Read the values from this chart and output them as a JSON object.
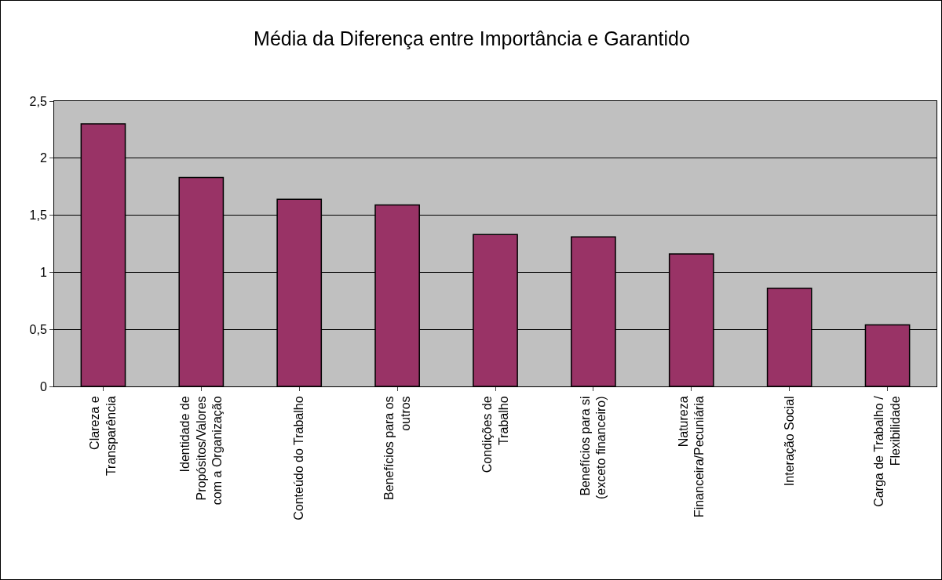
{
  "chart_data": {
    "type": "bar",
    "title": "Média da Diferença entre Importância e Garantido",
    "categories": [
      "Clareza e\nTransparência",
      "Identidade de\nPropósitos/Valores\ncom a Organização",
      "Conteúdo do Trabalho",
      "Benefícios para os\noutros",
      "Condições de\nTrabalho",
      "Benefícios para si\n(exceto financeiro)",
      "Natureza\nFinanceira/Pecuniária",
      "Interação Social",
      "Carga de Trabalho /\nFlexibilidade"
    ],
    "values": [
      2.3,
      1.83,
      1.64,
      1.59,
      1.33,
      1.31,
      1.16,
      0.86,
      0.54
    ],
    "color": "#993366",
    "ylim": [
      0,
      2.5
    ],
    "yticks": [
      0,
      {
        "value": 0.5,
        "label": "0,5"
      },
      1,
      {
        "value": 1.5,
        "label": "1,5"
      },
      2,
      {
        "value": 2.5,
        "label": "2,5"
      }
    ],
    "grid": "y"
  }
}
